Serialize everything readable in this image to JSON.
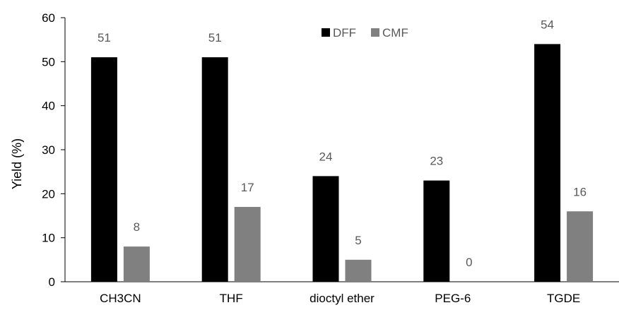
{
  "chart_data": {
    "type": "bar",
    "categories": [
      "CH3CN",
      "THF",
      "dioctyl ether",
      "PEG-6",
      "TGDE"
    ],
    "series": [
      {
        "name": "DFF",
        "values": [
          51,
          51,
          24,
          23,
          54
        ],
        "color": "#000000"
      },
      {
        "name": "CMF",
        "values": [
          8,
          17,
          5,
          0,
          16
        ],
        "color": "#808080"
      }
    ],
    "title": "",
    "xlabel": "",
    "ylabel": "Yield (%)",
    "ylim": [
      0,
      60
    ],
    "yticks": [
      0,
      10,
      20,
      30,
      40,
      50,
      60
    ],
    "grid": false,
    "legend_position": "top-center",
    "data_label_color": "#595959"
  }
}
